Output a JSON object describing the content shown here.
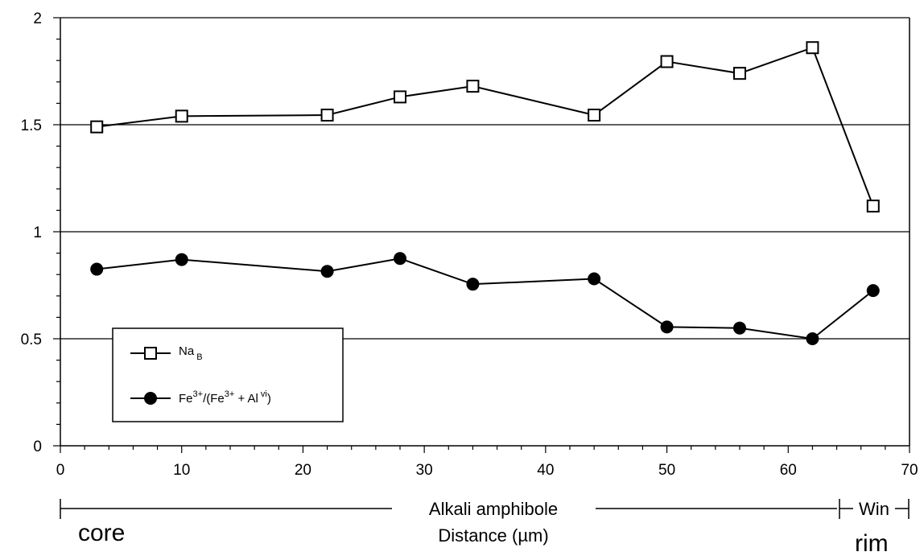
{
  "chart_data": {
    "type": "line",
    "title": "",
    "xlabel": "Distance (µm)",
    "ylabel": "",
    "xlim": [
      0,
      70
    ],
    "ylim": [
      0,
      2
    ],
    "x_ticks": [
      "0",
      "10",
      "20",
      "30",
      "40",
      "50",
      "60",
      "70"
    ],
    "y_ticks": [
      "0",
      "0.5",
      "1",
      "1.5",
      "2"
    ],
    "gridlines_y": [
      0.5,
      1,
      1.5,
      2
    ],
    "legend_position": "lower-left",
    "series": [
      {
        "name_main": "Na",
        "name_sub": "B",
        "marker": "open-square",
        "x": [
          3,
          10,
          22,
          28,
          34,
          44,
          50,
          56,
          62,
          67
        ],
        "y": [
          1.49,
          1.54,
          1.545,
          1.63,
          1.68,
          1.545,
          1.795,
          1.74,
          1.86,
          1.12
        ]
      },
      {
        "name_main": "Fe",
        "name_sup1": "3+",
        "name_mid": "/(Fe",
        "name_sup2": "3+",
        "name_mid2": " + Al",
        "name_sup3": "vi",
        "name_end": ")",
        "marker": "filled-circle",
        "x": [
          3,
          10,
          22,
          28,
          34,
          44,
          50,
          56,
          62,
          67
        ],
        "y": [
          0.825,
          0.87,
          0.815,
          0.875,
          0.755,
          0.78,
          0.555,
          0.55,
          0.5,
          0.725
        ]
      }
    ],
    "annotations": {
      "zone_label": "Alkali amphibole",
      "zone_label_2": "Win",
      "core_label": "core",
      "rim_label": "rim"
    }
  }
}
